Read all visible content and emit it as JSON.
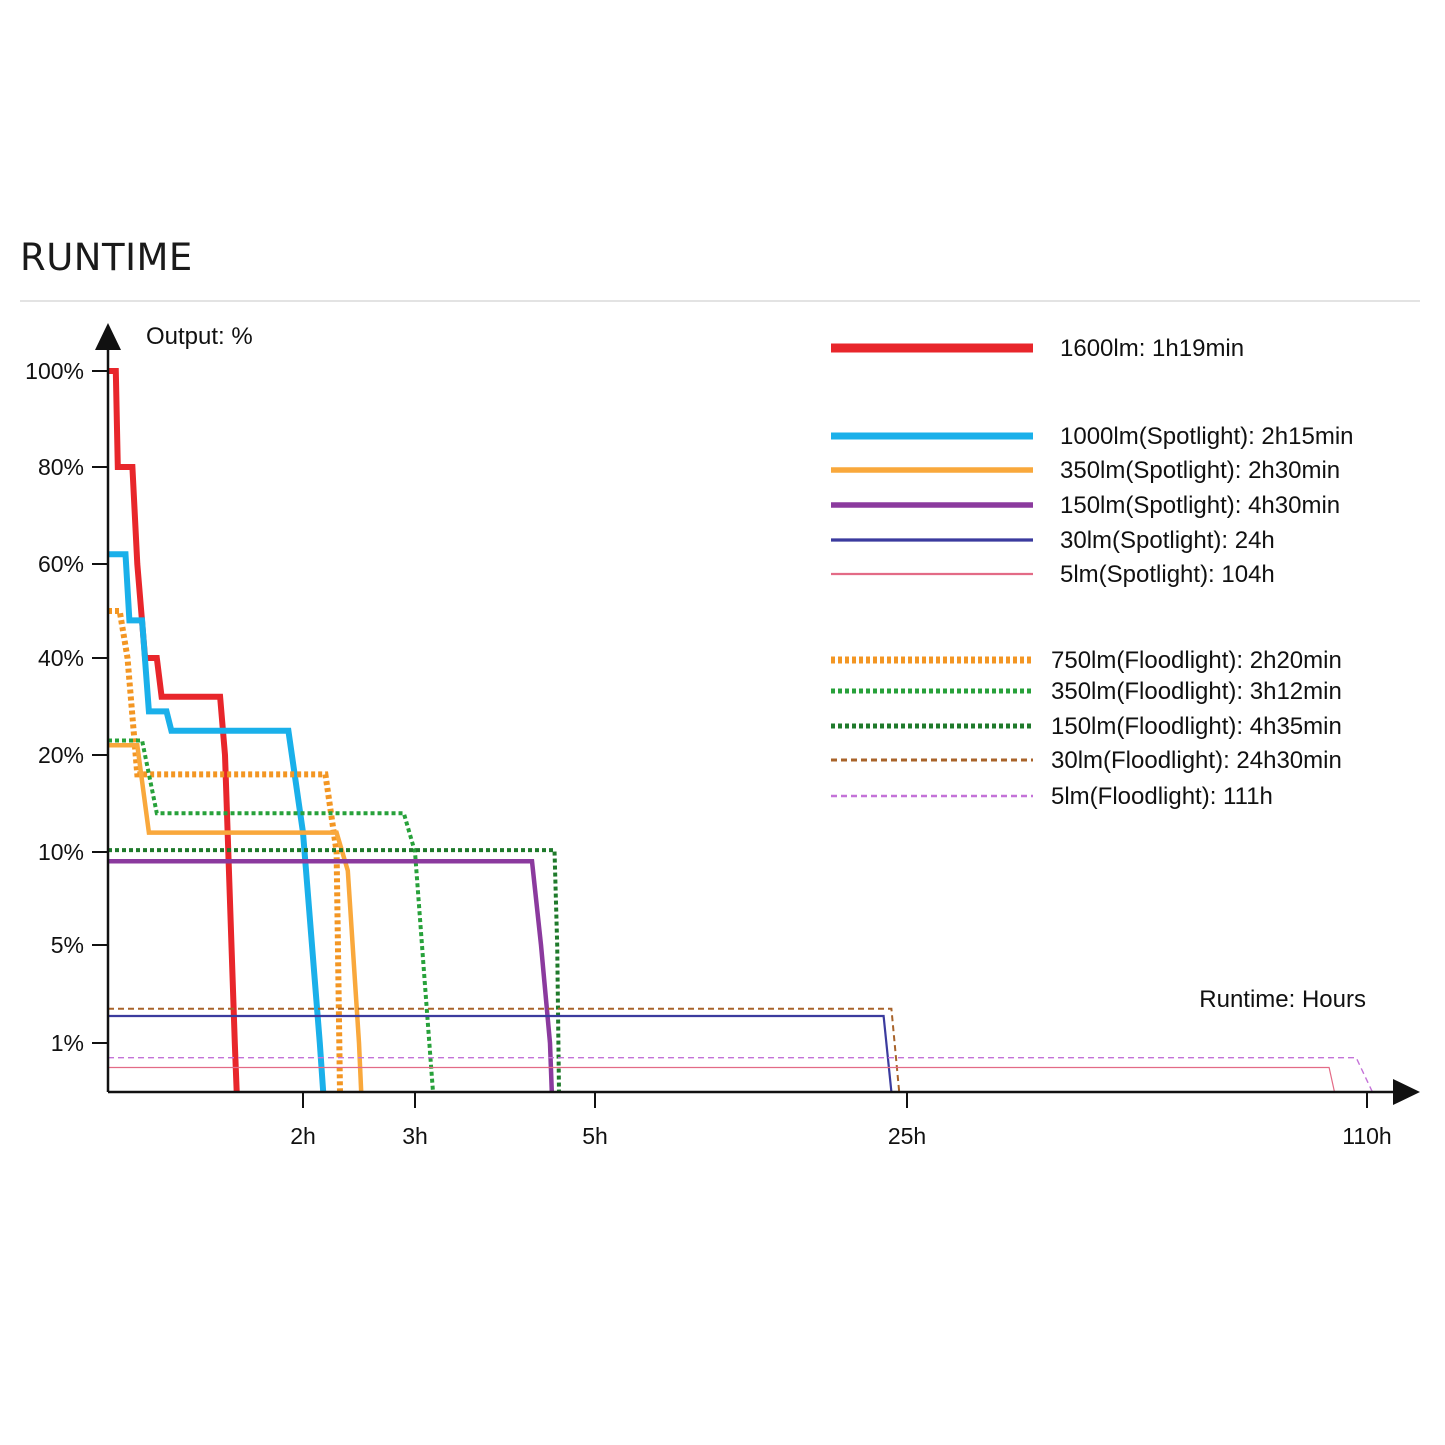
{
  "page": {
    "heading": "RUNTIME"
  },
  "chart_data": {
    "type": "line",
    "title": "RUNTIME",
    "ylabel": "Output: %",
    "xlabel": "Runtime: Hours",
    "y_ticks": [
      "100%",
      "80%",
      "60%",
      "40%",
      "20%",
      "10%",
      "5%",
      "1%"
    ],
    "x_ticks": [
      "2h",
      "3h",
      "5h",
      "25h",
      "110h"
    ],
    "legend_position": "top-right",
    "grid": false,
    "series": [
      {
        "name": "1600lm: 1h19min",
        "color": "#e8262b",
        "style": "solid-thick",
        "points": [
          [
            0,
            100
          ],
          [
            0.08,
            100
          ],
          [
            0.1,
            80
          ],
          [
            0.25,
            80
          ],
          [
            0.3,
            60
          ],
          [
            0.38,
            40
          ],
          [
            0.5,
            40
          ],
          [
            0.55,
            32
          ],
          [
            1.15,
            32
          ],
          [
            1.2,
            20
          ],
          [
            1.3,
            1
          ],
          [
            1.32,
            0
          ]
        ]
      },
      {
        "name": "1000lm(Spotlight): 2h15min",
        "color": "#1ab0ea",
        "style": "solid-thick",
        "points": [
          [
            0,
            62
          ],
          [
            0.18,
            62
          ],
          [
            0.22,
            48
          ],
          [
            0.35,
            48
          ],
          [
            0.42,
            29
          ],
          [
            0.6,
            29
          ],
          [
            0.65,
            25
          ],
          [
            1.85,
            25
          ],
          [
            2.0,
            12
          ],
          [
            2.15,
            1
          ],
          [
            2.18,
            0
          ]
        ]
      },
      {
        "name": "350lm(Spotlight): 2h30min",
        "color": "#f9a83c",
        "style": "solid",
        "points": [
          [
            0,
            22
          ],
          [
            0.3,
            22
          ],
          [
            0.42,
            12
          ],
          [
            2.3,
            12
          ],
          [
            2.4,
            9
          ],
          [
            2.5,
            1
          ],
          [
            2.52,
            0
          ]
        ]
      },
      {
        "name": "150lm(Spotlight): 4h30min",
        "color": "#8b3a9e",
        "style": "solid",
        "points": [
          [
            0,
            9.5
          ],
          [
            4.3,
            9.5
          ],
          [
            4.4,
            5
          ],
          [
            4.5,
            1
          ],
          [
            4.52,
            0
          ]
        ]
      },
      {
        "name": "30lm(Spotlight): 24h",
        "color": "#3b3b9e",
        "style": "solid-thin",
        "points": [
          [
            0,
            2.1
          ],
          [
            23.5,
            2.1
          ],
          [
            24,
            0
          ]
        ]
      },
      {
        "name": "5lm(Spotlight): 104h",
        "color": "#e36b86",
        "style": "hairline",
        "points": [
          [
            0,
            0.5
          ],
          [
            103,
            0.5
          ],
          [
            104,
            0
          ]
        ]
      },
      {
        "name": "750lm(Floodlight): 2h20min",
        "color": "#f39623",
        "style": "dotted-thick",
        "points": [
          [
            0,
            50
          ],
          [
            0.12,
            50
          ],
          [
            0.2,
            40
          ],
          [
            0.3,
            18
          ],
          [
            2.2,
            18
          ],
          [
            2.3,
            10
          ],
          [
            2.33,
            0
          ]
        ]
      },
      {
        "name": "350lm(Floodlight): 3h12min",
        "color": "#27a13a",
        "style": "dotted",
        "points": [
          [
            0,
            23
          ],
          [
            0.35,
            23
          ],
          [
            0.5,
            14
          ],
          [
            2.9,
            14
          ],
          [
            3.0,
            10
          ],
          [
            3.2,
            0
          ]
        ]
      },
      {
        "name": "150lm(Floodlight): 4h35min",
        "color": "#1f7a2b",
        "style": "dotted",
        "points": [
          [
            0,
            10.2
          ],
          [
            4.55,
            10.2
          ],
          [
            4.58,
            5
          ],
          [
            4.6,
            0
          ]
        ]
      },
      {
        "name": "30lm(Floodlight): 24h30min",
        "color": "#a8632a",
        "style": "dashed",
        "points": [
          [
            0,
            2.4
          ],
          [
            24,
            2.4
          ],
          [
            24.5,
            0
          ]
        ]
      },
      {
        "name": "5lm(Floodlight): 111h",
        "color": "#c472d8",
        "style": "dashed-thin",
        "points": [
          [
            0,
            0.7
          ],
          [
            108,
            0.7
          ],
          [
            111,
            0
          ]
        ]
      }
    ]
  }
}
